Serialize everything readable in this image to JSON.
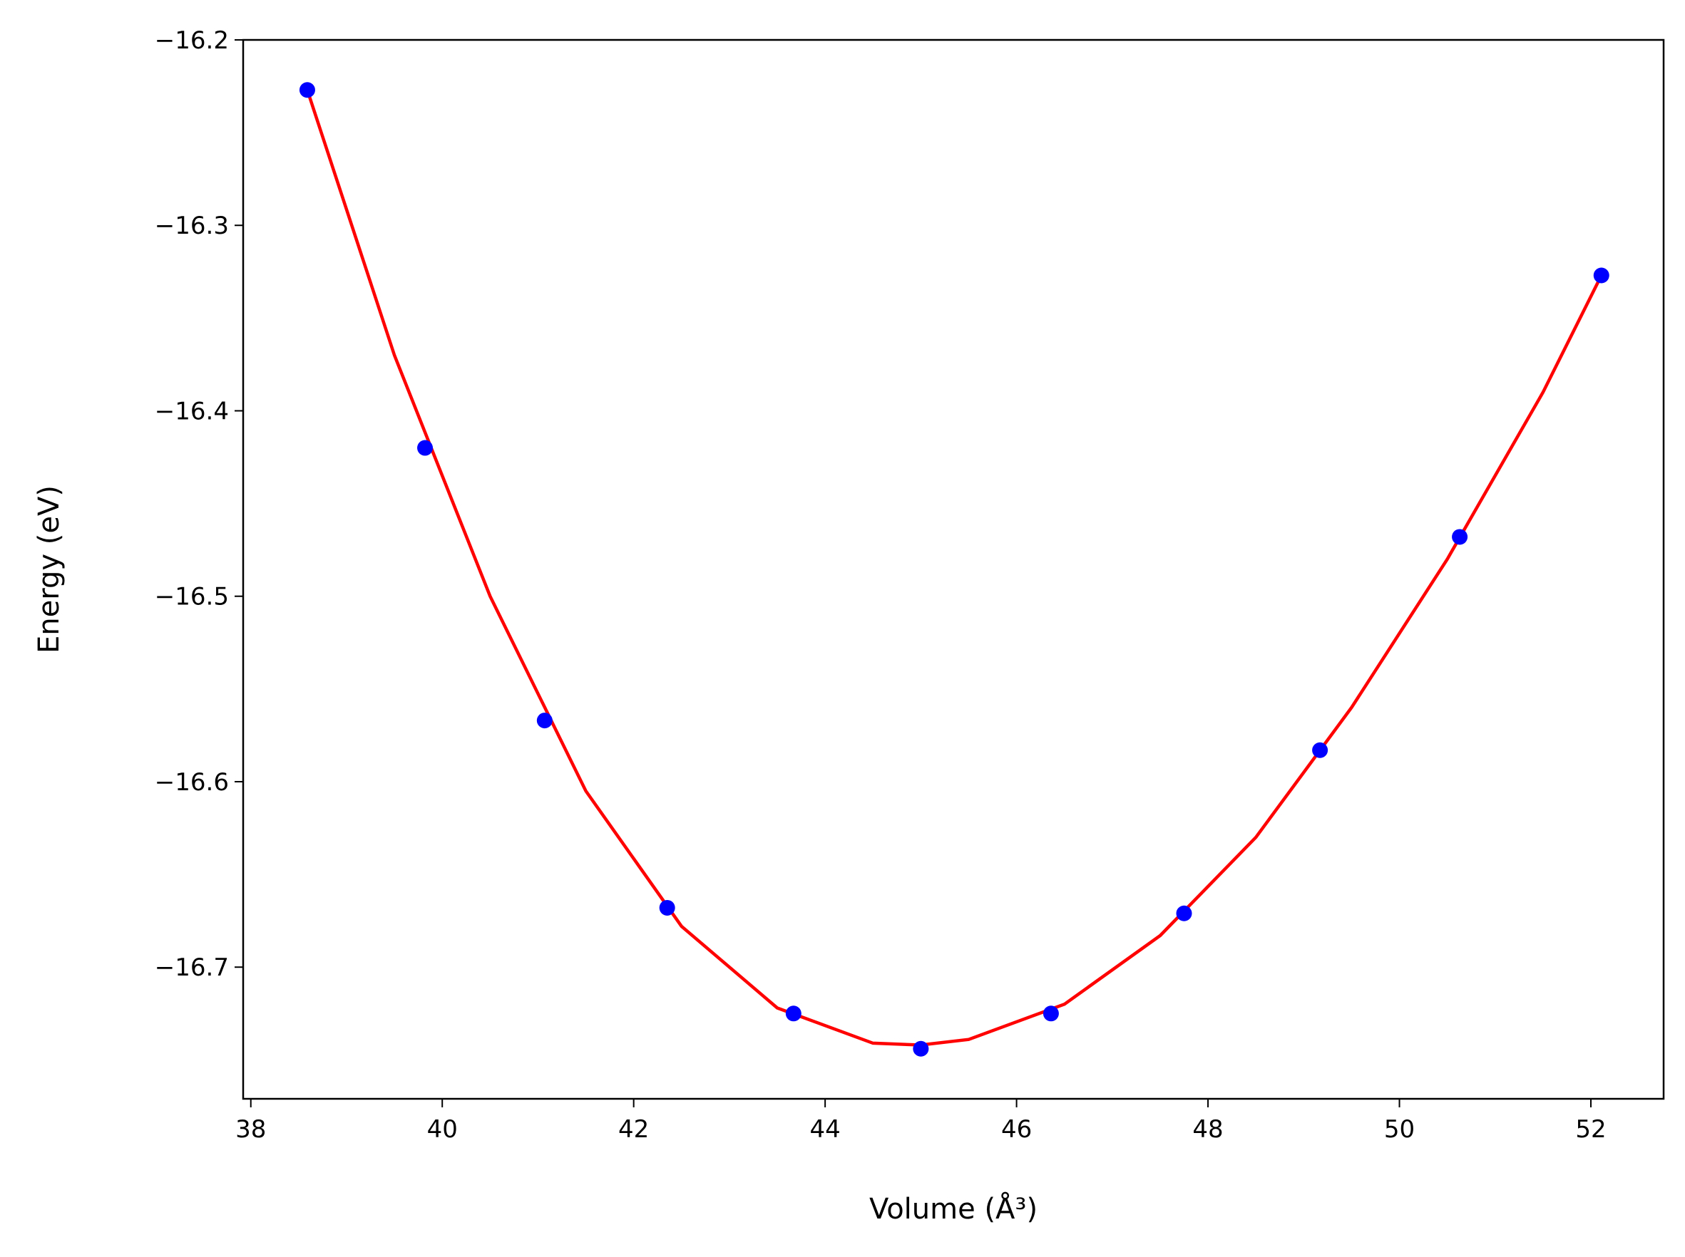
{
  "chart_data": {
    "type": "scatter",
    "xlabel": "Volume (Å³)",
    "ylabel": "Energy (eV)",
    "xlim": [
      37.92,
      52.76
    ],
    "xticks": [
      38,
      40,
      42,
      44,
      46,
      48,
      50,
      52
    ],
    "ylim": [
      -16.771,
      -16.2
    ],
    "yticks": [
      {
        "value": -16.2,
        "label": "−16.2"
      },
      {
        "value": -16.3,
        "label": "−16.3"
      },
      {
        "value": -16.4,
        "label": "−16.4"
      },
      {
        "value": -16.5,
        "label": "−16.5"
      },
      {
        "value": -16.6,
        "label": "−16.6"
      },
      {
        "value": -16.7,
        "label": "−16.7"
      }
    ],
    "grid": false,
    "series": [
      {
        "style": "line",
        "color": "#ff0000",
        "x": [
          38.59,
          39.5,
          40.5,
          41.5,
          42.5,
          43.5,
          44.5,
          45.0,
          45.5,
          46.5,
          47.5,
          48.5,
          49.5,
          50.5,
          51.5,
          52.11
        ],
        "values": [
          -16.227,
          -16.37,
          -16.5,
          -16.605,
          -16.678,
          -16.722,
          -16.741,
          -16.742,
          -16.739,
          -16.72,
          -16.683,
          -16.63,
          -16.56,
          -16.48,
          -16.39,
          -16.327
        ]
      },
      {
        "style": "markers",
        "color": "#0000ff",
        "x": [
          38.59,
          39.82,
          41.07,
          42.35,
          43.67,
          45.0,
          46.36,
          47.75,
          49.17,
          50.63,
          52.11
        ],
        "values": [
          -16.227,
          -16.42,
          -16.567,
          -16.668,
          -16.725,
          -16.744,
          -16.725,
          -16.671,
          -16.583,
          -16.468,
          -16.327
        ]
      }
    ]
  }
}
